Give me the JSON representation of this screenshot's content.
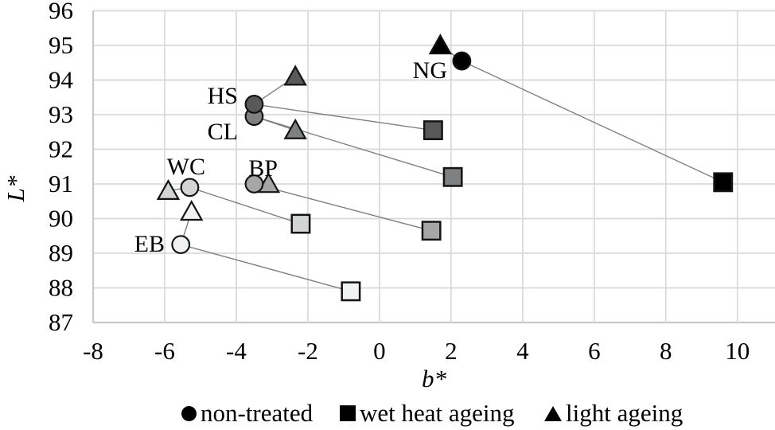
{
  "chart_data": {
    "type": "scatter",
    "title": "",
    "xlabel": "b*",
    "ylabel": "L*",
    "xlim": [
      -8,
      11.05
    ],
    "ylim": [
      87,
      96
    ],
    "x_ticks": [
      -8,
      -6,
      -4,
      -2,
      0,
      2,
      4,
      6,
      8,
      10
    ],
    "y_ticks": [
      96,
      95,
      94,
      93,
      92,
      91,
      90,
      89,
      88,
      87
    ],
    "grid": true,
    "legend_position": "bottom",
    "legend": [
      {
        "marker": "circle",
        "label": "non-treated"
      },
      {
        "marker": "square",
        "label": "wet heat ageing"
      },
      {
        "marker": "triangle",
        "label": "light ageing"
      }
    ],
    "colors": {
      "marker_stroke": "#141414",
      "connector_line": "#808080",
      "gridline": "#d9d9d9",
      "axis_line": "#c8c8c8",
      "text": "#000000"
    },
    "samples": [
      {
        "label": "NG",
        "fill": "#000000",
        "non_treated": {
          "b": 2.3,
          "L": 94.55
        },
        "wet_heat_ageing": {
          "b": 9.6,
          "L": 91.05
        },
        "light_ageing": {
          "b": 1.7,
          "L": 95.0
        }
      },
      {
        "label": "HS",
        "fill": "#595959",
        "non_treated": {
          "b": -3.5,
          "L": 93.3
        },
        "wet_heat_ageing": {
          "b": 1.5,
          "L": 92.55
        },
        "light_ageing": {
          "b": -2.35,
          "L": 94.1
        }
      },
      {
        "label": "CL",
        "fill": "#7f8081",
        "non_treated": {
          "b": -3.5,
          "L": 92.95
        },
        "wet_heat_ageing": {
          "b": 2.05,
          "L": 91.2
        },
        "light_ageing": {
          "b": -2.35,
          "L": 92.55
        }
      },
      {
        "label": "WC",
        "fill": "#d3d5d5",
        "non_treated": {
          "b": -5.3,
          "L": 90.9
        },
        "wet_heat_ageing": {
          "b": -2.2,
          "L": 89.85
        },
        "light_ageing": {
          "b": -5.9,
          "L": 90.8
        }
      },
      {
        "label": "BP",
        "fill": "#a6a6a6",
        "non_treated": {
          "b": -3.5,
          "L": 91.0
        },
        "wet_heat_ageing": {
          "b": 1.45,
          "L": 89.65
        },
        "light_ageing": {
          "b": -3.1,
          "L": 91.0
        }
      },
      {
        "label": "EB",
        "fill": "#f1f2f2",
        "non_treated": {
          "b": -5.55,
          "L": 89.25
        },
        "wet_heat_ageing": {
          "b": -0.8,
          "L": 87.9
        },
        "light_ageing": {
          "b": -5.25,
          "L": 90.2
        }
      }
    ]
  }
}
